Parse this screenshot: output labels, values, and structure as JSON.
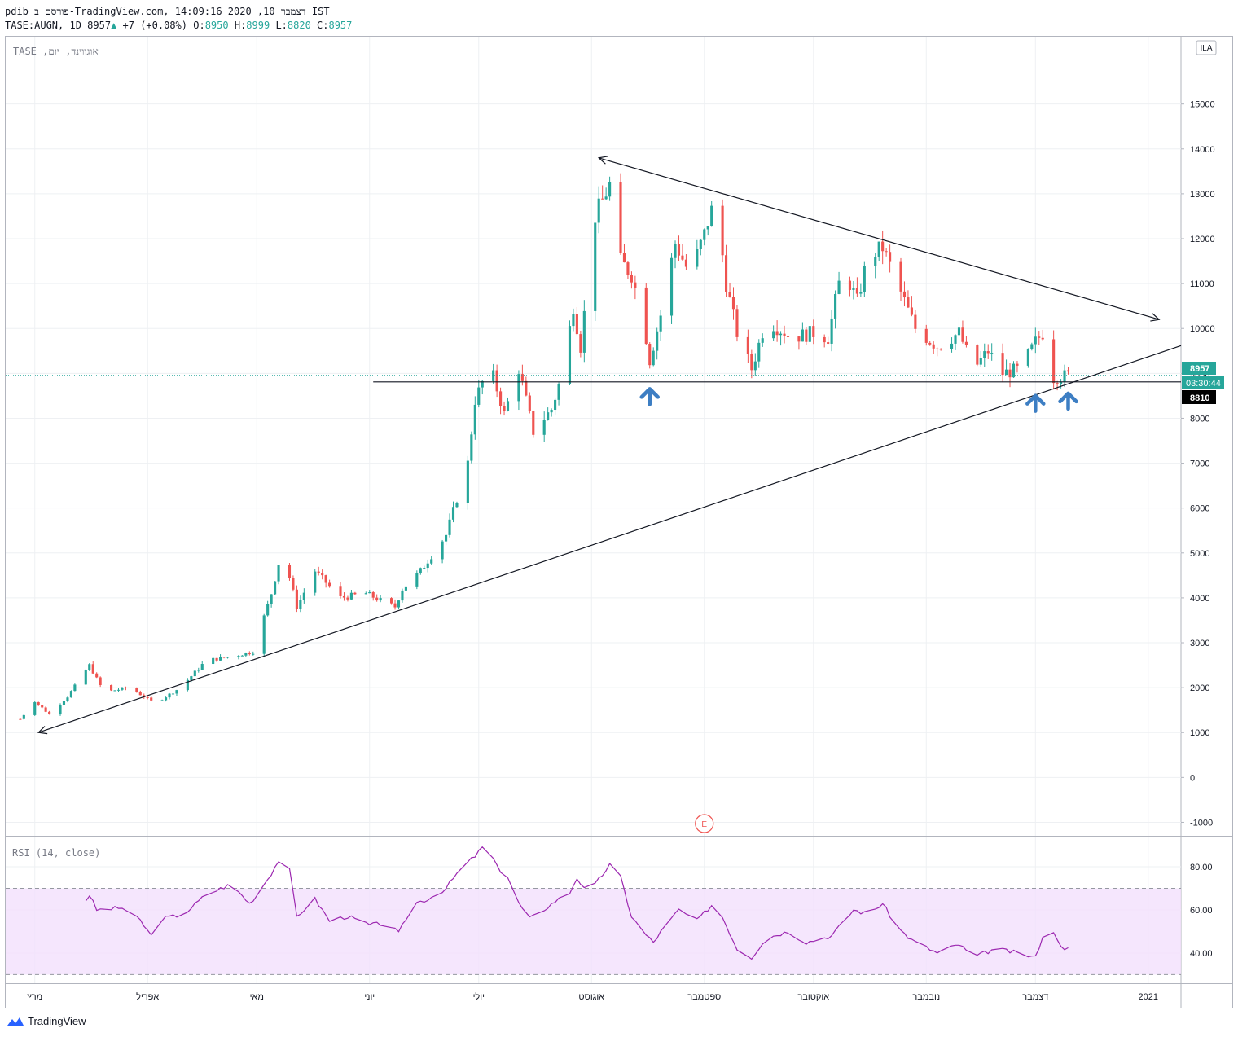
{
  "header": {
    "line1": "pdib פורסם ב-TradingView.com, דצמבר 10, 2020 14:09:16 IST",
    "symbol": "TASE:AUGN, 1D",
    "last": "8957",
    "change": "+7 (+0.08%)",
    "o_label": "O:",
    "o": "8950",
    "h_label": "H:",
    "h": "8999",
    "l_label": "L:",
    "l": "8820",
    "c_label": "C:",
    "c": "8957"
  },
  "pane_title": "TASE ,אוגווינד, יום",
  "currency_badge": "ILA",
  "earnings_marker": "E",
  "price_badges": {
    "last": "8957",
    "countdown": "03:30:44",
    "level": "8810"
  },
  "rsi_title": "RSI (14, close)",
  "footer": {
    "brand": "TradingView"
  },
  "colors": {
    "up": "#26a69a",
    "down": "#ef5350",
    "rsi": "#9c27b0",
    "rsi_band": "#f3e0fc",
    "arrow": "#3d7ec3"
  },
  "chart_data": [
    {
      "type": "candlestick",
      "title": "",
      "ylim": [
        -1300,
        16500
      ],
      "y_ticks": [
        -1000,
        0,
        1000,
        2000,
        3000,
        4000,
        5000,
        6000,
        7000,
        8000,
        9000,
        10000,
        11000,
        12000,
        13000,
        14000,
        15000
      ],
      "y_tick_labels": [
        "-1000",
        "0",
        "1000",
        "2000",
        "3000",
        "4000",
        "5000",
        "6000",
        "7000",
        "8000",
        "9000",
        "10000",
        "11000",
        "12000",
        "13000",
        "14000",
        "15000"
      ],
      "x_range": [
        "2020-02-22",
        "2021-01-10"
      ],
      "month_ticks": [
        {
          "date": "2020-03-01",
          "label": "מרץ"
        },
        {
          "date": "2020-04-01",
          "label": "אפריל"
        },
        {
          "date": "2020-05-01",
          "label": "מאי"
        },
        {
          "date": "2020-06-01",
          "label": "יוני"
        },
        {
          "date": "2020-07-01",
          "label": "יולי"
        },
        {
          "date": "2020-08-01",
          "label": "אוגוסט"
        },
        {
          "date": "2020-09-01",
          "label": "ספטמבר"
        },
        {
          "date": "2020-10-01",
          "label": "אוקטובר"
        },
        {
          "date": "2020-11-01",
          "label": "נובמבר"
        },
        {
          "date": "2020-12-01",
          "label": "דצמבר"
        },
        {
          "date": "2021-01-01",
          "label": "2021"
        }
      ],
      "anchors": [
        {
          "d": "2020-02-26",
          "p": 1300
        },
        {
          "d": "2020-03-01",
          "p": 1700
        },
        {
          "d": "2020-03-05",
          "p": 1400
        },
        {
          "d": "2020-03-10",
          "p": 1800
        },
        {
          "d": "2020-03-16",
          "p": 2500
        },
        {
          "d": "2020-03-20",
          "p": 1900
        },
        {
          "d": "2020-03-27",
          "p": 2000
        },
        {
          "d": "2020-04-03",
          "p": 1650
        },
        {
          "d": "2020-04-10",
          "p": 2000
        },
        {
          "d": "2020-04-17",
          "p": 2600
        },
        {
          "d": "2020-04-24",
          "p": 2700
        },
        {
          "d": "2020-04-30",
          "p": 2800
        },
        {
          "d": "2020-05-05",
          "p": 4100
        },
        {
          "d": "2020-05-08",
          "p": 5100
        },
        {
          "d": "2020-05-12",
          "p": 3800
        },
        {
          "d": "2020-05-17",
          "p": 4600
        },
        {
          "d": "2020-05-24",
          "p": 4000
        },
        {
          "d": "2020-05-31",
          "p": 4100
        },
        {
          "d": "2020-06-05",
          "p": 3900
        },
        {
          "d": "2020-06-08",
          "p": 3800
        },
        {
          "d": "2020-06-10",
          "p": 4200
        },
        {
          "d": "2020-06-15",
          "p": 4600
        },
        {
          "d": "2020-06-22",
          "p": 5400
        },
        {
          "d": "2020-06-28",
          "p": 7000
        },
        {
          "d": "2020-06-30",
          "p": 8400
        },
        {
          "d": "2020-07-04",
          "p": 9200
        },
        {
          "d": "2020-07-08",
          "p": 8100
        },
        {
          "d": "2020-07-12",
          "p": 9100
        },
        {
          "d": "2020-07-16",
          "p": 7700
        },
        {
          "d": "2020-07-21",
          "p": 8200
        },
        {
          "d": "2020-07-24",
          "p": 9000
        },
        {
          "d": "2020-07-27",
          "p": 10500
        },
        {
          "d": "2020-07-29",
          "p": 9600
        },
        {
          "d": "2020-08-02",
          "p": 12500
        },
        {
          "d": "2020-08-06",
          "p": 13200
        },
        {
          "d": "2020-08-09",
          "p": 11500
        },
        {
          "d": "2020-08-12",
          "p": 11200
        },
        {
          "d": "2020-08-15",
          "p": 10300
        },
        {
          "d": "2020-08-17",
          "p": 9300
        },
        {
          "d": "2020-08-20",
          "p": 10300
        },
        {
          "d": "2020-08-24",
          "p": 11900
        },
        {
          "d": "2020-08-28",
          "p": 11200
        },
        {
          "d": "2020-09-01",
          "p": 12100
        },
        {
          "d": "2020-09-04",
          "p": 12900
        },
        {
          "d": "2020-09-07",
          "p": 11000
        },
        {
          "d": "2020-09-10",
          "p": 9900
        },
        {
          "d": "2020-09-14",
          "p": 9100
        },
        {
          "d": "2020-09-18",
          "p": 10200
        },
        {
          "d": "2020-09-25",
          "p": 9800
        },
        {
          "d": "2020-10-01",
          "p": 9900
        },
        {
          "d": "2020-10-05",
          "p": 9800
        },
        {
          "d": "2020-10-09",
          "p": 11400
        },
        {
          "d": "2020-10-13",
          "p": 10600
        },
        {
          "d": "2020-10-16",
          "p": 11600
        },
        {
          "d": "2020-10-20",
          "p": 11800
        },
        {
          "d": "2020-10-24",
          "p": 11000
        },
        {
          "d": "2020-10-29",
          "p": 10000
        },
        {
          "d": "2020-11-04",
          "p": 9600
        },
        {
          "d": "2020-11-10",
          "p": 9900
        },
        {
          "d": "2020-11-14",
          "p": 9100
        },
        {
          "d": "2020-11-18",
          "p": 9500
        },
        {
          "d": "2020-11-22",
          "p": 9000
        },
        {
          "d": "2020-11-27",
          "p": 9100
        },
        {
          "d": "2020-12-01",
          "p": 9700
        },
        {
          "d": "2020-12-03",
          "p": 9900
        },
        {
          "d": "2020-12-06",
          "p": 8900
        },
        {
          "d": "2020-12-10",
          "p": 8957
        }
      ],
      "trendlines": [
        {
          "from": {
            "d": "2020-08-03",
            "p": 13800
          },
          "to": {
            "d": "2021-01-04",
            "p": 10200
          },
          "arrow": "both"
        },
        {
          "from": {
            "d": "2020-03-02",
            "p": 1000
          },
          "to": {
            "d": "2021-01-13",
            "p": 9700
          },
          "arrow": "start"
        },
        {
          "from": {
            "d": "2020-06-02",
            "p": 8810
          },
          "to": {
            "d": "2021-01-13",
            "p": 8810
          },
          "arrow": "none"
        }
      ],
      "markers": [
        {
          "d": "2020-08-17",
          "p": 8600,
          "shape": "arrow-up"
        },
        {
          "d": "2020-12-01",
          "p": 8450,
          "shape": "arrow-up"
        },
        {
          "d": "2020-12-10",
          "p": 8500,
          "shape": "arrow-up"
        }
      ],
      "price_line": 8957,
      "earnings_date": "2020-09-01"
    },
    {
      "type": "line",
      "title": "",
      "ylim": [
        26,
        94
      ],
      "y_ticks": [
        40,
        60,
        80
      ],
      "y_tick_labels": [
        "40.00",
        "60.00",
        "80.00"
      ],
      "band": [
        30,
        70
      ],
      "anchors": [
        {
          "d": "2020-03-14",
          "v": 62
        },
        {
          "d": "2020-03-16",
          "v": 67
        },
        {
          "d": "2020-03-18",
          "v": 60
        },
        {
          "d": "2020-03-25",
          "v": 61
        },
        {
          "d": "2020-03-30",
          "v": 55
        },
        {
          "d": "2020-04-02",
          "v": 48
        },
        {
          "d": "2020-04-05",
          "v": 56
        },
        {
          "d": "2020-04-11",
          "v": 58
        },
        {
          "d": "2020-04-17",
          "v": 67
        },
        {
          "d": "2020-04-24",
          "v": 72
        },
        {
          "d": "2020-04-29",
          "v": 63
        },
        {
          "d": "2020-05-01",
          "v": 67
        },
        {
          "d": "2020-05-05",
          "v": 77
        },
        {
          "d": "2020-05-09",
          "v": 89
        },
        {
          "d": "2020-05-12",
          "v": 57
        },
        {
          "d": "2020-05-17",
          "v": 65
        },
        {
          "d": "2020-05-21",
          "v": 55
        },
        {
          "d": "2020-05-26",
          "v": 57
        },
        {
          "d": "2020-06-01",
          "v": 53
        },
        {
          "d": "2020-06-06",
          "v": 54
        },
        {
          "d": "2020-06-09",
          "v": 49
        },
        {
          "d": "2020-06-13",
          "v": 63
        },
        {
          "d": "2020-06-17",
          "v": 65
        },
        {
          "d": "2020-06-22",
          "v": 70
        },
        {
          "d": "2020-06-26",
          "v": 79
        },
        {
          "d": "2020-06-30",
          "v": 85
        },
        {
          "d": "2020-07-03",
          "v": 91
        },
        {
          "d": "2020-07-06",
          "v": 80
        },
        {
          "d": "2020-07-09",
          "v": 75
        },
        {
          "d": "2020-07-12",
          "v": 63
        },
        {
          "d": "2020-07-15",
          "v": 56
        },
        {
          "d": "2020-07-18",
          "v": 59
        },
        {
          "d": "2020-07-22",
          "v": 64
        },
        {
          "d": "2020-07-26",
          "v": 68
        },
        {
          "d": "2020-07-28",
          "v": 75
        },
        {
          "d": "2020-07-31",
          "v": 67
        },
        {
          "d": "2020-08-03",
          "v": 74
        },
        {
          "d": "2020-08-06",
          "v": 81
        },
        {
          "d": "2020-08-09",
          "v": 75
        },
        {
          "d": "2020-08-12",
          "v": 57
        },
        {
          "d": "2020-08-15",
          "v": 50
        },
        {
          "d": "2020-08-18",
          "v": 45
        },
        {
          "d": "2020-08-21",
          "v": 52
        },
        {
          "d": "2020-08-25",
          "v": 60
        },
        {
          "d": "2020-08-30",
          "v": 55
        },
        {
          "d": "2020-09-04",
          "v": 64
        },
        {
          "d": "2020-09-07",
          "v": 53
        },
        {
          "d": "2020-09-10",
          "v": 42
        },
        {
          "d": "2020-09-14",
          "v": 38
        },
        {
          "d": "2020-09-18",
          "v": 47
        },
        {
          "d": "2020-09-24",
          "v": 50
        },
        {
          "d": "2020-09-29",
          "v": 45
        },
        {
          "d": "2020-10-06",
          "v": 48
        },
        {
          "d": "2020-10-12",
          "v": 60
        },
        {
          "d": "2020-10-16",
          "v": 58
        },
        {
          "d": "2020-10-20",
          "v": 63
        },
        {
          "d": "2020-10-24",
          "v": 52
        },
        {
          "d": "2020-10-28",
          "v": 46
        },
        {
          "d": "2020-11-04",
          "v": 40
        },
        {
          "d": "2020-11-10",
          "v": 44
        },
        {
          "d": "2020-11-14",
          "v": 38
        },
        {
          "d": "2020-11-20",
          "v": 42
        },
        {
          "d": "2020-11-26",
          "v": 40
        },
        {
          "d": "2020-12-01",
          "v": 38
        },
        {
          "d": "2020-12-04",
          "v": 53
        },
        {
          "d": "2020-12-07",
          "v": 47
        },
        {
          "d": "2020-12-09",
          "v": 41
        },
        {
          "d": "2020-12-10",
          "v": 42
        }
      ]
    }
  ]
}
